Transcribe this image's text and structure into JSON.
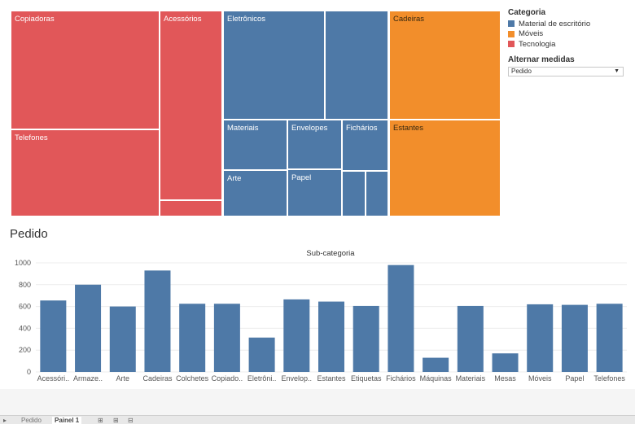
{
  "treemap": {
    "tiles": [
      {
        "label": "Copiadoras",
        "color": "#e15759"
      },
      {
        "label": "Telefones",
        "color": "#e15759"
      },
      {
        "label": "Acessórios",
        "color": "#e15759"
      },
      {
        "label": "",
        "color": "#e15759"
      },
      {
        "label": "Eletrônicos",
        "color": "#4e79a7"
      },
      {
        "label": "",
        "color": "#4e79a7"
      },
      {
        "label": "Materiais",
        "color": "#4e79a7"
      },
      {
        "label": "Envelopes",
        "color": "#4e79a7"
      },
      {
        "label": "Fichários",
        "color": "#4e79a7"
      },
      {
        "label": "Arte",
        "color": "#4e79a7"
      },
      {
        "label": "Papel",
        "color": "#4e79a7"
      },
      {
        "label": "",
        "color": "#4e79a7"
      },
      {
        "label": "",
        "color": "#4e79a7"
      },
      {
        "label": "Cadeiras",
        "color": "#f28e2b"
      },
      {
        "label": "Estantes",
        "color": "#f28e2b"
      }
    ]
  },
  "legend": {
    "title": "Categoria",
    "items": [
      {
        "label": "Material de escritório",
        "color": "#4e79a7"
      },
      {
        "label": "Móveis",
        "color": "#f28e2b"
      },
      {
        "label": "Tecnologia",
        "color": "#e15759"
      }
    ]
  },
  "measure": {
    "title": "Alternar medidas",
    "value": "Pedido"
  },
  "bar_section": {
    "title": "Pedido"
  },
  "chart_data": {
    "type": "bar",
    "title": "Sub-categoria",
    "categories": [
      "Acessóri..",
      "Armaze..",
      "Arte",
      "Cadeiras",
      "Colchetes",
      "Copiado..",
      "Eletrôni..",
      "Envelop..",
      "Estantes",
      "Etiquetas",
      "Fichários",
      "Máquinas",
      "Materiais",
      "Mesas",
      "Móveis",
      "Papel",
      "Telefones"
    ],
    "values": [
      655,
      800,
      600,
      930,
      625,
      625,
      315,
      665,
      645,
      605,
      980,
      130,
      605,
      170,
      620,
      615,
      625
    ],
    "ylim": [
      0,
      1000
    ],
    "yticks": [
      0,
      200,
      400,
      600,
      800,
      1000
    ],
    "color": "#4e79a7",
    "grid": true
  },
  "tabs": {
    "items": [
      "Pedido",
      "Painel 1"
    ]
  }
}
